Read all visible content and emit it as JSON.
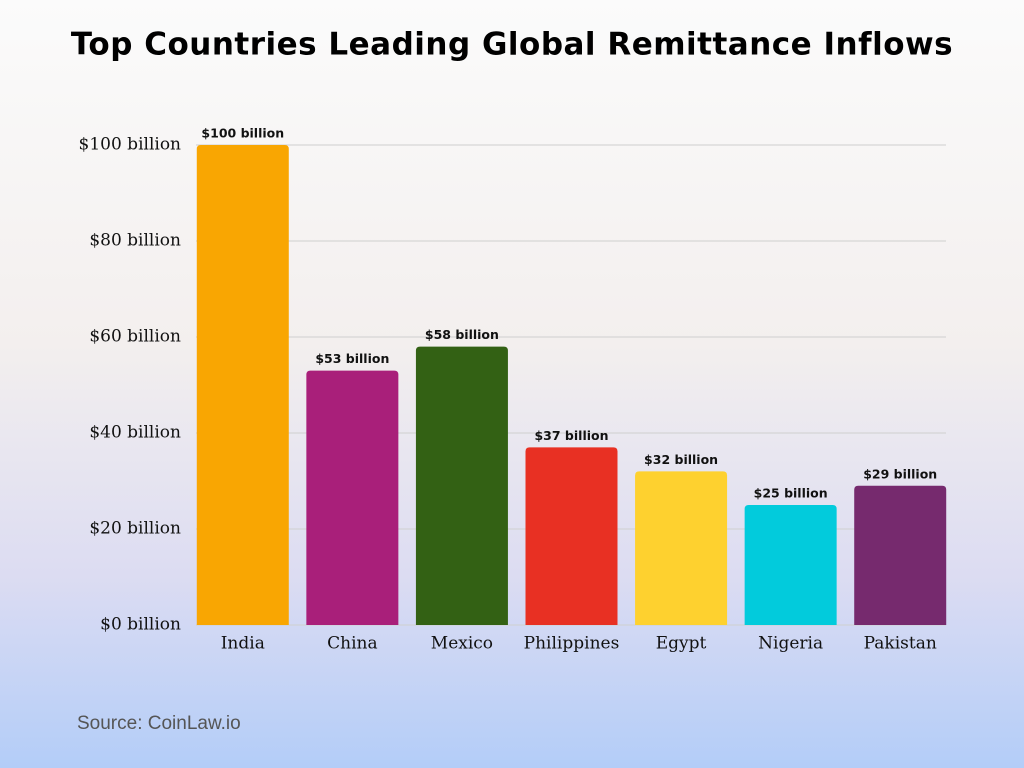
{
  "chart_data": {
    "type": "bar",
    "title": "Top Countries Leading Global Remittance Inflows",
    "categories": [
      "India",
      "China",
      "Mexico",
      "Philippines",
      "Egypt",
      "Nigeria",
      "Pakistan"
    ],
    "values": [
      100,
      53,
      58,
      37,
      32,
      25,
      29
    ],
    "value_labels": [
      "$100 billion",
      "$53 billion",
      "$58 billion",
      "$37 billion",
      "$32 billion",
      "$25 billion",
      "$29 billion"
    ],
    "colors": [
      "#f9a602",
      "#a91f7a",
      "#336114",
      "#e83023",
      "#fed12f",
      "#02cbdc",
      "#762a6e"
    ],
    "ylim": [
      0,
      100
    ],
    "yticks": [
      {
        "value": 0,
        "label": "$0 billion"
      },
      {
        "value": 20,
        "label": "$20 billion"
      },
      {
        "value": 40,
        "label": "$40 billion"
      },
      {
        "value": 60,
        "label": "$60 billion"
      },
      {
        "value": 80,
        "label": "$80 billion"
      },
      {
        "value": 100,
        "label": "$100 billion"
      }
    ],
    "grid": true,
    "source": "Source: CoinLaw.io"
  }
}
